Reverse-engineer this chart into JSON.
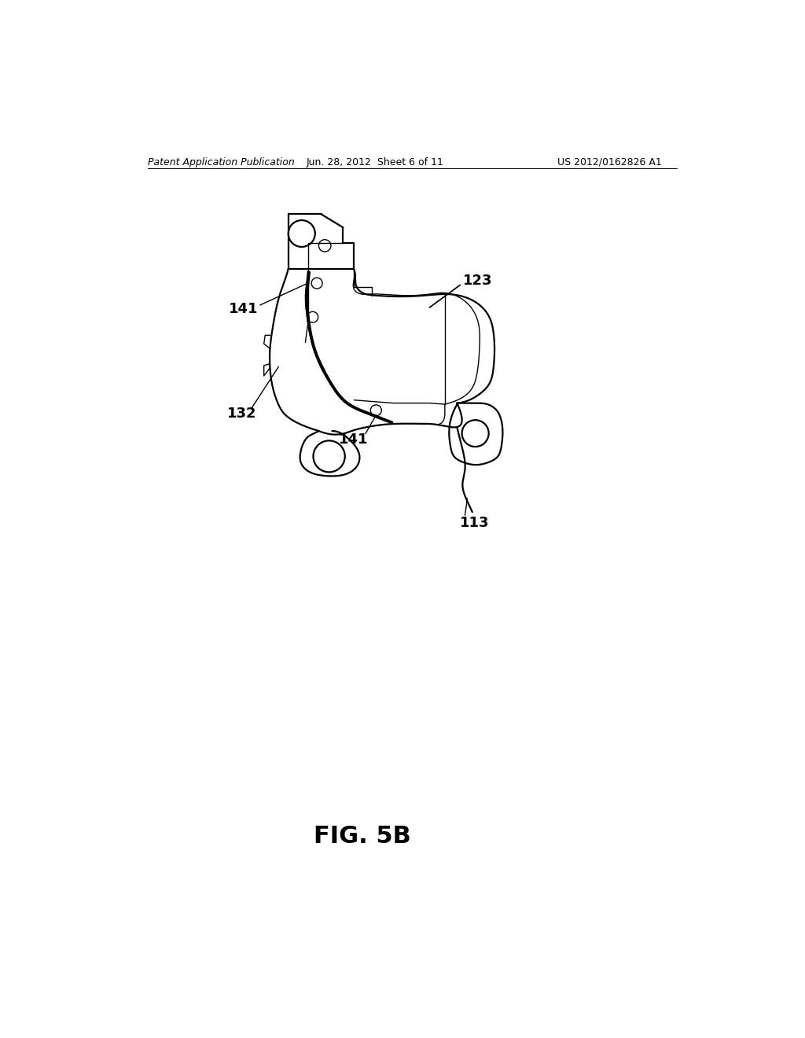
{
  "bg_color": "#ffffff",
  "line_color": "#000000",
  "fig_label": "FIG. 5B",
  "header_left": "Patent Application Publication",
  "header_center": "Jun. 28, 2012  Sheet 6 of 11",
  "header_right": "US 2012/0162826 A1",
  "lw_thin": 1.0,
  "lw_med": 1.6,
  "lw_thick": 2.8,
  "label_fontsize": 13,
  "header_fontsize": 9,
  "figlabel_fontsize": 22
}
